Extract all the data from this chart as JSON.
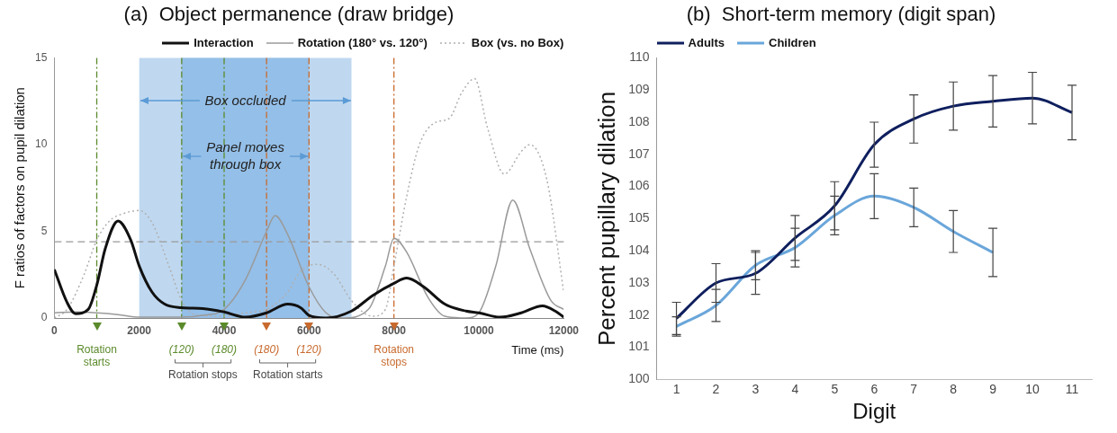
{
  "chart_data": [
    {
      "type": "line",
      "title": "(a)  Object permanence (draw bridge)",
      "xlabel": "Time (ms)",
      "ylabel": "F ratios of factors on pupil dilation",
      "xlim": [
        0,
        12000
      ],
      "xticks": [
        0,
        2000,
        4000,
        6000,
        8000,
        10000,
        12000
      ],
      "ylim": [
        0,
        15
      ],
      "yticks": [
        0,
        5,
        10,
        15
      ],
      "grid": false,
      "legend": "top right",
      "marker": "none",
      "series": [
        {
          "name": "Interaction",
          "color": "#111111",
          "line_style": "solid",
          "x": [
            0,
            300,
            500,
            800,
            1000,
            1200,
            1500,
            1800,
            2000,
            2300,
            2600,
            3000,
            3500,
            4000,
            4500,
            5000,
            5500,
            5800,
            6000,
            6400,
            7000,
            7500,
            8000,
            8300,
            8700,
            9200,
            9700,
            10000,
            10500,
            11000,
            11500,
            11800,
            12000
          ],
          "values": [
            2.8,
            0.9,
            0.25,
            0.5,
            1.9,
            4.0,
            5.6,
            4.5,
            3.0,
            1.5,
            0.8,
            0.6,
            0.55,
            0.35,
            0.05,
            0.3,
            0.8,
            0.6,
            0.15,
            0,
            0.4,
            1.3,
            2.0,
            2.3,
            1.8,
            0.8,
            0.4,
            0.3,
            0.05,
            0.3,
            0.7,
            0.4,
            0.05
          ]
        },
        {
          "name": "Rotation (180° vs. 120°)",
          "color": "#9a9a9a",
          "line_style": "solid",
          "x": [
            0,
            500,
            1000,
            1500,
            2000,
            3000,
            3500,
            4000,
            4500,
            5000,
            5200,
            5500,
            6000,
            6400,
            6800,
            7400,
            7800,
            8000,
            8300,
            8800,
            9200,
            9700,
            10000,
            10400,
            10800,
            11200,
            11700,
            12000
          ],
          "values": [
            0.3,
            0.35,
            0.3,
            0.2,
            0.05,
            0.05,
            0.15,
            0.5,
            2.2,
            5.0,
            5.9,
            4.8,
            1.8,
            0.3,
            0,
            0.5,
            3.0,
            4.6,
            3.8,
            1.2,
            0.1,
            0,
            0.3,
            3.0,
            6.8,
            4.0,
            1.0,
            0.5
          ]
        },
        {
          "name": "Box (vs. no Box)",
          "color": "#b0b0b0",
          "line_style": "dotted",
          "x": [
            0,
            300,
            700,
            1000,
            1300,
            1600,
            2000,
            2300,
            2700,
            3000,
            3300,
            4000,
            4500,
            5000,
            5500,
            5800,
            6200,
            6600,
            7000,
            7500,
            7800,
            8000,
            8300,
            8600,
            9000,
            9300,
            9600,
            9900,
            10200,
            10600,
            11000,
            11200,
            11600,
            12000
          ],
          "values": [
            0,
            0.5,
            2.5,
            4.5,
            5.6,
            6.0,
            6.2,
            5.5,
            3.0,
            1.0,
            0.2,
            0.1,
            0.3,
            0.5,
            1.5,
            2.7,
            3.1,
            2.5,
            1.0,
            0.1,
            0.5,
            3.0,
            7.0,
            10.0,
            11.3,
            11.5,
            13.0,
            13.8,
            11.0,
            8.3,
            9.6,
            10.0,
            8.0,
            1.5
          ]
        }
      ],
      "bands": [
        {
          "axis": "x",
          "from": 2000,
          "to": 7000,
          "label": "Box occluded",
          "color": "#bfd8f0"
        },
        {
          "axis": "x",
          "from": 3000,
          "to": 6000,
          "label": "Panel moves through box",
          "color": "#94bfe8"
        }
      ],
      "ref_lines": [
        {
          "axis": "y",
          "value": 4.4,
          "color": "#999999",
          "line_style": "dashed"
        },
        {
          "axis": "x",
          "value": 1000,
          "label": "Rotation starts",
          "color": "#5b8a2b",
          "line_style": "dashed"
        },
        {
          "axis": "x",
          "value": 3000,
          "color": "#5b8a2b",
          "line_style": "dashed"
        },
        {
          "axis": "x",
          "value": 4000,
          "color": "#5b8a2b",
          "line_style": "dashed"
        },
        {
          "axis": "x",
          "value": 5000,
          "color": "#c86a2e",
          "line_style": "dashed"
        },
        {
          "axis": "x",
          "value": 6000,
          "color": "#c86a2e",
          "line_style": "dashed"
        },
        {
          "axis": "x",
          "value": 8000,
          "label": "Rotation stops",
          "color": "#c86a2e",
          "line_style": "dashed"
        }
      ],
      "annotations": [
        "(120)",
        "(180)",
        "(180)",
        "(120)",
        "Rotation stops",
        "Rotation starts"
      ]
    },
    {
      "type": "line",
      "title": "(b)  Short-term memory (digit span)",
      "xlabel": "Digit",
      "ylabel": "Percent pupillary dilation",
      "categories": [
        "1",
        "2",
        "3",
        "4",
        "5",
        "6",
        "7",
        "8",
        "9",
        "10",
        "11"
      ],
      "ylim": [
        100,
        110
      ],
      "yticks": [
        100,
        101,
        102,
        103,
        104,
        105,
        106,
        107,
        108,
        109,
        110
      ],
      "grid": false,
      "legend": "top left",
      "marker": "none",
      "series": [
        {
          "name": "Adults",
          "color": "#0f1f5e",
          "values": [
            101.9,
            103.0,
            103.3,
            104.4,
            105.4,
            107.3,
            108.1,
            108.5,
            108.65,
            108.75,
            108.3
          ],
          "errors": [
            0.5,
            0.6,
            0.65,
            0.7,
            0.75,
            0.7,
            0.75,
            0.75,
            0.8,
            0.8,
            0.85
          ]
        },
        {
          "name": "Children",
          "color": "#6aa6da",
          "values": [
            101.65,
            102.3,
            103.55,
            104.1,
            105.1,
            105.7,
            105.35,
            104.6,
            103.95,
            null,
            null
          ],
          "errors": [
            0.3,
            0.5,
            0.45,
            0.6,
            0.6,
            0.7,
            0.6,
            0.65,
            0.75,
            null,
            null
          ]
        }
      ]
    }
  ]
}
